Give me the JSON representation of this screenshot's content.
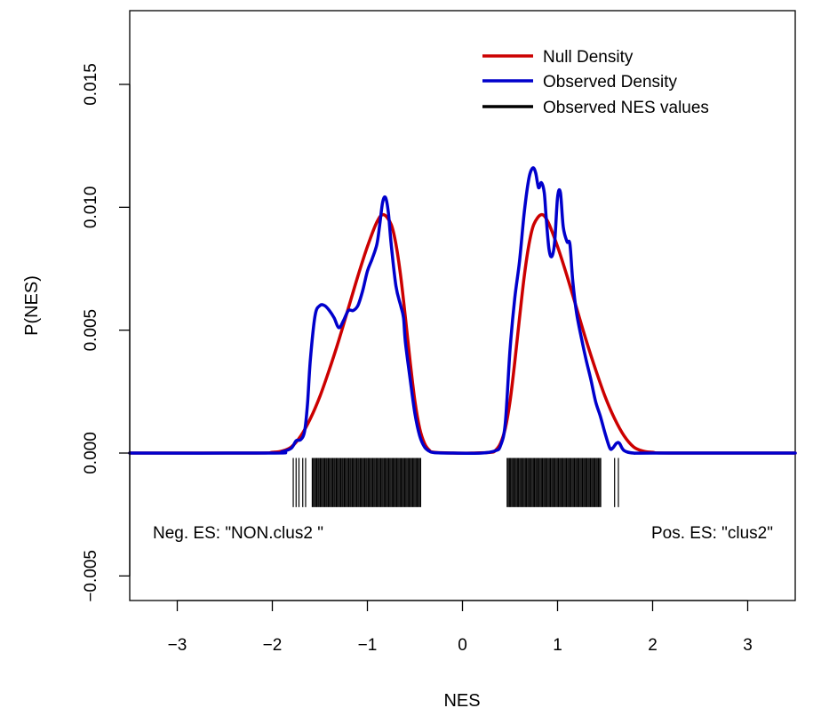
{
  "chart_data": {
    "type": "line",
    "title": "",
    "xlabel": "NES",
    "ylabel": "P(NES)",
    "xlim": [
      -3.5,
      3.5
    ],
    "ylim": [
      -0.006,
      0.018
    ],
    "x_ticks": [
      -3,
      -2,
      -1,
      0,
      1,
      2,
      3
    ],
    "x_tick_labels": [
      "−3",
      "−2",
      "−1",
      "0",
      "1",
      "2",
      "3"
    ],
    "y_ticks": [
      -0.005,
      0.0,
      0.005,
      0.01,
      0.015
    ],
    "y_tick_labels": [
      "−0.005",
      "0.000",
      "0.005",
      "0.010",
      "0.015"
    ],
    "grid": false,
    "legend_position": "top-right",
    "legend": [
      {
        "label": "Null Density",
        "color": "#cc0000"
      },
      {
        "label": "Observed Density",
        "color": "#0000cc"
      },
      {
        "label": "Observed NES values",
        "color": "#000000"
      }
    ],
    "series": [
      {
        "name": "Null Density",
        "color": "#cc0000",
        "x": [
          -3.5,
          -2.2,
          -2.0,
          -1.9,
          -1.8,
          -1.7,
          -1.6,
          -1.5,
          -1.4,
          -1.3,
          -1.2,
          -1.1,
          -1.0,
          -0.9,
          -0.83,
          -0.75,
          -0.7,
          -0.65,
          -0.6,
          -0.55,
          -0.5,
          -0.45,
          -0.4,
          -0.35,
          -0.3,
          -0.1,
          0.1,
          0.3,
          0.35,
          0.4,
          0.45,
          0.5,
          0.55,
          0.6,
          0.65,
          0.7,
          0.75,
          0.83,
          0.9,
          1.0,
          1.1,
          1.2,
          1.3,
          1.4,
          1.5,
          1.6,
          1.7,
          1.8,
          1.9,
          2.0,
          2.2,
          3.5
        ],
        "y": [
          0,
          0,
          3e-05,
          8e-05,
          0.00025,
          0.0007,
          0.0014,
          0.0023,
          0.0034,
          0.0046,
          0.0059,
          0.0072,
          0.0084,
          0.0094,
          0.0097,
          0.0093,
          0.0085,
          0.0072,
          0.0055,
          0.0037,
          0.0021,
          0.001,
          0.0004,
          0.00012,
          3e-05,
          0,
          0,
          3e-05,
          0.00012,
          0.0004,
          0.001,
          0.0021,
          0.0037,
          0.0055,
          0.0072,
          0.0085,
          0.0093,
          0.0097,
          0.0094,
          0.0084,
          0.0072,
          0.0059,
          0.0046,
          0.0034,
          0.0023,
          0.0014,
          0.0007,
          0.00025,
          8e-05,
          3e-05,
          0,
          0
        ]
      },
      {
        "name": "Observed Density",
        "color": "#0000cc",
        "x": [
          -3.5,
          -2.0,
          -1.9,
          -1.8,
          -1.75,
          -1.7,
          -1.66,
          -1.63,
          -1.6,
          -1.55,
          -1.5,
          -1.45,
          -1.4,
          -1.35,
          -1.3,
          -1.25,
          -1.2,
          -1.15,
          -1.1,
          -1.05,
          -1.0,
          -0.95,
          -0.9,
          -0.87,
          -0.84,
          -0.81,
          -0.78,
          -0.75,
          -0.7,
          -0.65,
          -0.62,
          -0.6,
          -0.55,
          -0.5,
          -0.45,
          -0.4,
          -0.35,
          -0.3,
          -0.1,
          0.2,
          0.35,
          0.4,
          0.45,
          0.5,
          0.55,
          0.6,
          0.65,
          0.7,
          0.74,
          0.77,
          0.8,
          0.83,
          0.86,
          0.88,
          0.91,
          0.94,
          0.97,
          1.0,
          1.03,
          1.06,
          1.1,
          1.13,
          1.16,
          1.2,
          1.25,
          1.3,
          1.35,
          1.4,
          1.45,
          1.5,
          1.55,
          1.58,
          1.62,
          1.65,
          1.7,
          1.8,
          2.0,
          3.5
        ],
        "y": [
          0,
          0,
          5e-05,
          0.0002,
          0.0005,
          0.00055,
          0.0009,
          0.002,
          0.0038,
          0.0056,
          0.006,
          0.006,
          0.0058,
          0.0055,
          0.0051,
          0.0054,
          0.0058,
          0.0058,
          0.006,
          0.0066,
          0.0074,
          0.0079,
          0.0085,
          0.0093,
          0.0102,
          0.0104,
          0.0098,
          0.0085,
          0.0068,
          0.006,
          0.0055,
          0.0045,
          0.003,
          0.0016,
          0.0007,
          0.00025,
          8e-05,
          2e-05,
          0,
          0,
          0.0001,
          0.0003,
          0.0012,
          0.0042,
          0.0063,
          0.0078,
          0.0098,
          0.0112,
          0.0116,
          0.0114,
          0.0108,
          0.011,
          0.0106,
          0.0096,
          0.0083,
          0.008,
          0.0086,
          0.0104,
          0.0106,
          0.0092,
          0.0086,
          0.0085,
          0.007,
          0.0057,
          0.0047,
          0.0038,
          0.003,
          0.0021,
          0.0015,
          0.0008,
          0.0002,
          0.0002,
          0.0004,
          0.0004,
          0.0001,
          0,
          0,
          0
        ]
      }
    ],
    "rug": {
      "name": "Observed NES values",
      "color": "#000000",
      "y_top": -0.0002,
      "y_bottom": -0.0022,
      "left_cluster": {
        "isolated": [
          -1.78,
          -1.75,
          -1.72,
          -1.68,
          -1.65
        ],
        "dense_from": -1.58,
        "dense_to": -0.43
      },
      "right_cluster": {
        "dense_from": 0.47,
        "dense_to": 1.46,
        "isolated": [
          1.6,
          1.64
        ]
      }
    },
    "annotations": [
      {
        "text": "Neg. ES: \"NON.clus2 \"",
        "position": "bottom-left"
      },
      {
        "text": "Pos. ES: \"clus2\"",
        "position": "bottom-right"
      }
    ]
  }
}
